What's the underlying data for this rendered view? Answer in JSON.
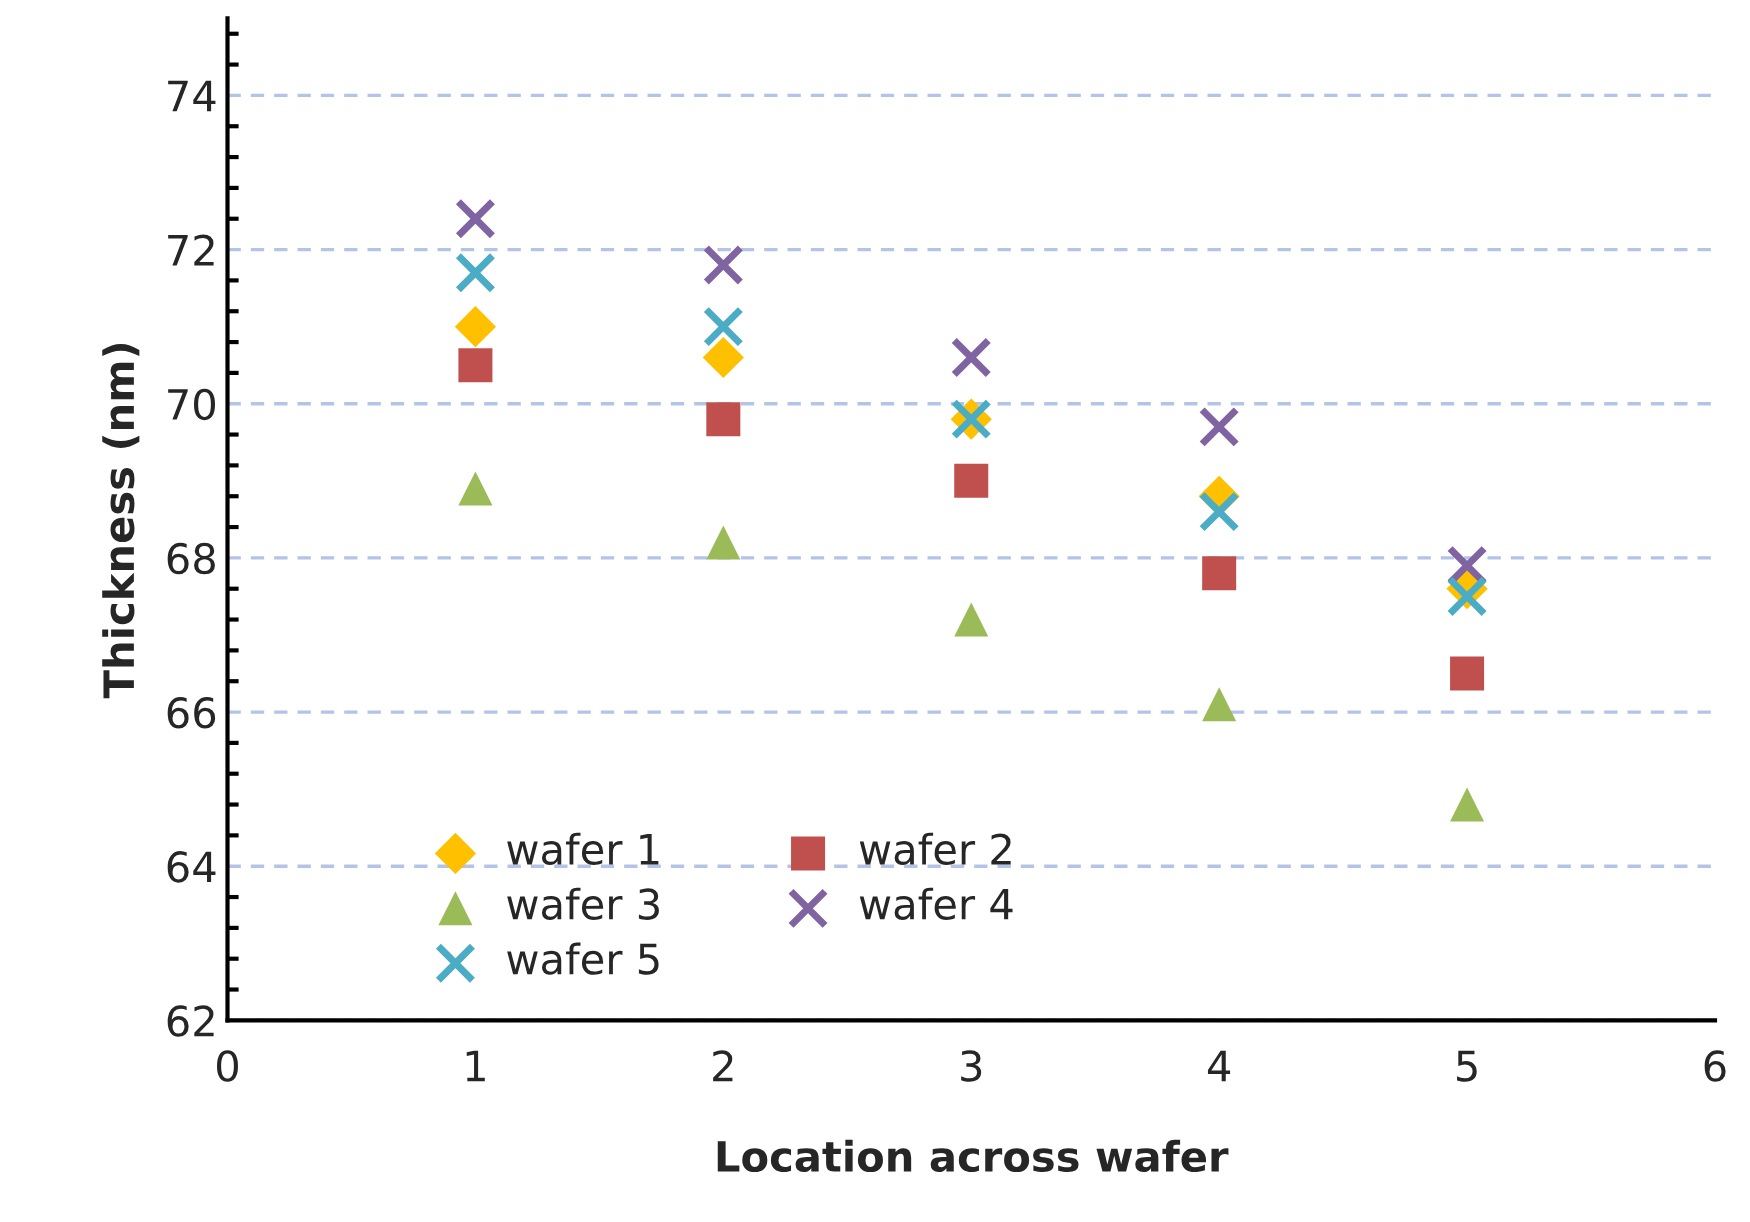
{
  "chart_data": {
    "type": "scatter",
    "xlabel": "Location across wafer",
    "ylabel": "Thickness (nm)",
    "x": [
      1,
      2,
      3,
      4,
      5
    ],
    "series": [
      {
        "name": "wafer 1",
        "color": "#ffc000",
        "marker": "diamond",
        "values": [
          71.0,
          70.6,
          69.8,
          68.8,
          67.6
        ]
      },
      {
        "name": "wafer 2",
        "color": "#c0504d",
        "marker": "square",
        "values": [
          70.5,
          69.8,
          69.0,
          67.8,
          66.5
        ]
      },
      {
        "name": "wafer 3",
        "color": "#9bbb59",
        "marker": "triangle",
        "values": [
          68.9,
          68.2,
          67.2,
          66.1,
          64.8
        ]
      },
      {
        "name": "wafer 4",
        "color": "#8064a2",
        "marker": "cross",
        "values": [
          72.4,
          71.8,
          70.6,
          69.7,
          67.9
        ]
      },
      {
        "name": "wafer 5",
        "color": "#4bacc6",
        "marker": "cross",
        "values": [
          71.7,
          71.0,
          69.8,
          68.6,
          67.5
        ]
      }
    ],
    "xlim": [
      0,
      6
    ],
    "xticks": [
      0,
      1,
      2,
      3,
      4,
      5,
      6
    ],
    "ylim": [
      62,
      75
    ],
    "yticks": [
      62,
      64,
      66,
      68,
      70,
      72,
      74
    ],
    "grid": "y",
    "legend": "bottom left"
  }
}
